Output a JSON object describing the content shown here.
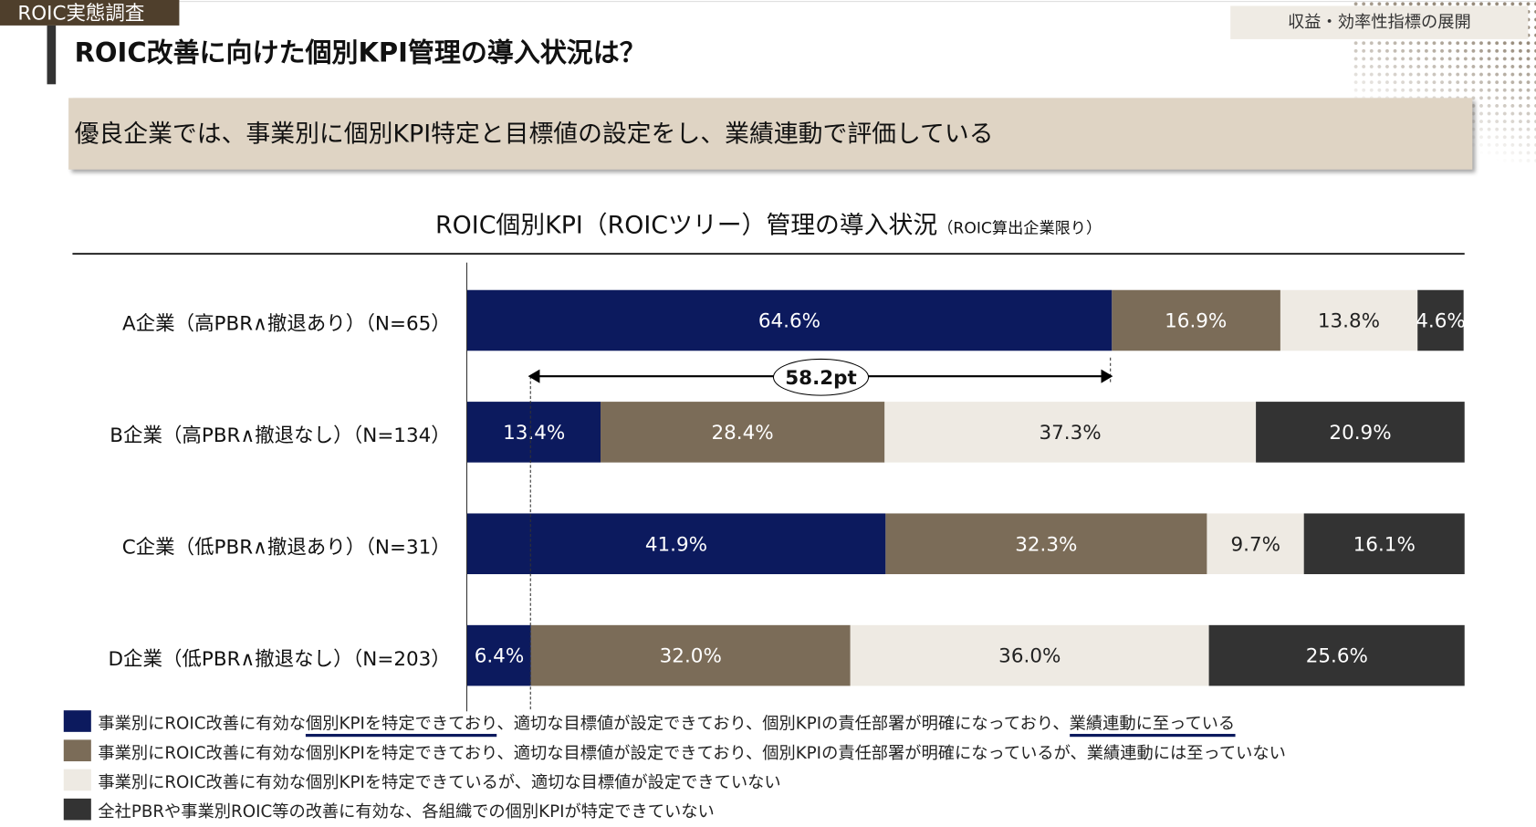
{
  "header": {
    "tag": "ROIC実態調査",
    "title": "ROIC改善に向けた個別KPI管理の導入状況は？",
    "section": "収益・効率性指標の展開"
  },
  "summary": "優良企業では、事業別に個別KPI特定と目標値の設定をし、業績連動で評価している",
  "chart_data": {
    "type": "bar",
    "orientation": "horizontal-stacked-100",
    "title": "ROIC個別KPI（ROICツリー）管理の導入状況",
    "note": "（ROIC算出企業限り）",
    "categories": [
      "A企業（高PBR∧撤退あり）（N=65）",
      "B企業（高PBR∧撤退なし）（N=134）",
      "C企業（低PBR∧撤退あり）（N=31）",
      "D企業（低PBR∧撤退なし）（N=203）"
    ],
    "series": [
      {
        "name": "事業別にROIC改善に有効な個別KPIを特定できており、適切な目標値が設定できており、個別KPIの責任部署が明確になっており、業績連動に至っている",
        "color": "#0c1a5e",
        "text": "#ffffff",
        "values": [
          64.6,
          13.4,
          41.9,
          6.4
        ]
      },
      {
        "name": "事業別にROIC改善に有効な個別KPIを特定できており、適切な目標値が設定できており、個別KPIの責任部署が明確になっているが、業績連動には至っていない",
        "color": "#7b6c58",
        "text": "#ffffff",
        "values": [
          16.9,
          28.4,
          32.3,
          32.0
        ]
      },
      {
        "name": "事業別にROIC改善に有効な個別KPIを特定できているが、適切な目標値が設定できていない",
        "color": "#eeeae3",
        "text": "#222222",
        "values": [
          13.8,
          37.3,
          9.7,
          36.0
        ]
      },
      {
        "name": "全社PBRや事業別ROIC等の改善に有効な、各組織での個別KPIが特定できていない",
        "color": "#333333",
        "text": "#ffffff",
        "values": [
          4.6,
          20.9,
          16.1,
          25.6
        ]
      }
    ],
    "xlim": [
      0,
      100
    ],
    "annotation": {
      "label": "58.2pt",
      "from_value": 6.4,
      "to_value": 64.6
    }
  },
  "legend_parts": {
    "a1": "事業別にROIC改善に有効な",
    "a2": "個別KPIを特定できており",
    "a3": "、適切な目標値が設定できており、個別KPIの責任部署が明確になっており、",
    "a4": "業績連動に至っている"
  }
}
